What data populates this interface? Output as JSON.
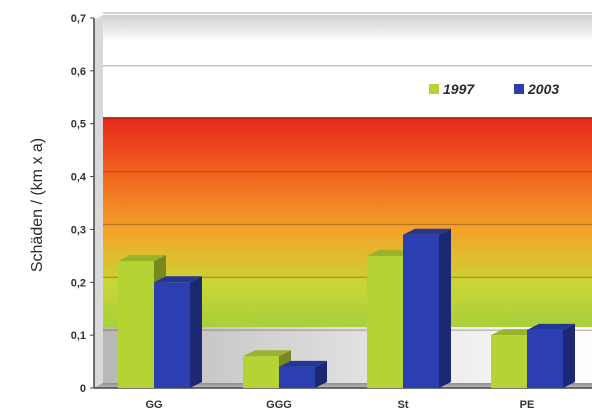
{
  "chart_data": {
    "type": "bar",
    "title": "",
    "xlabel": "",
    "ylabel": "Schäden / (km x a)",
    "ylim": [
      0,
      0.7
    ],
    "y_ticks": [
      "0",
      "0,1",
      "0,2",
      "0,3",
      "0,4",
      "0,5",
      "0,6",
      "0,7"
    ],
    "categories": [
      "GG",
      "GGG",
      "St",
      "PE"
    ],
    "series": [
      {
        "name": "1997",
        "color": "#b5d332",
        "values": [
          0.24,
          0.06,
          0.25,
          0.1
        ]
      },
      {
        "name": "2003",
        "color": "#2b3fb0",
        "values": [
          0.2,
          0.04,
          0.29,
          0.11
        ]
      }
    ],
    "legend_position": "top-right",
    "grid": true,
    "style": "3d-columns",
    "background_band": {
      "type": "red-orange-yellow-green gradient",
      "from_value": 0.11,
      "to_value": 0.51,
      "colors": [
        "#e8261c",
        "#f26a1e",
        "#f3a52a",
        "#c9d636",
        "#a7cf3c"
      ]
    }
  }
}
